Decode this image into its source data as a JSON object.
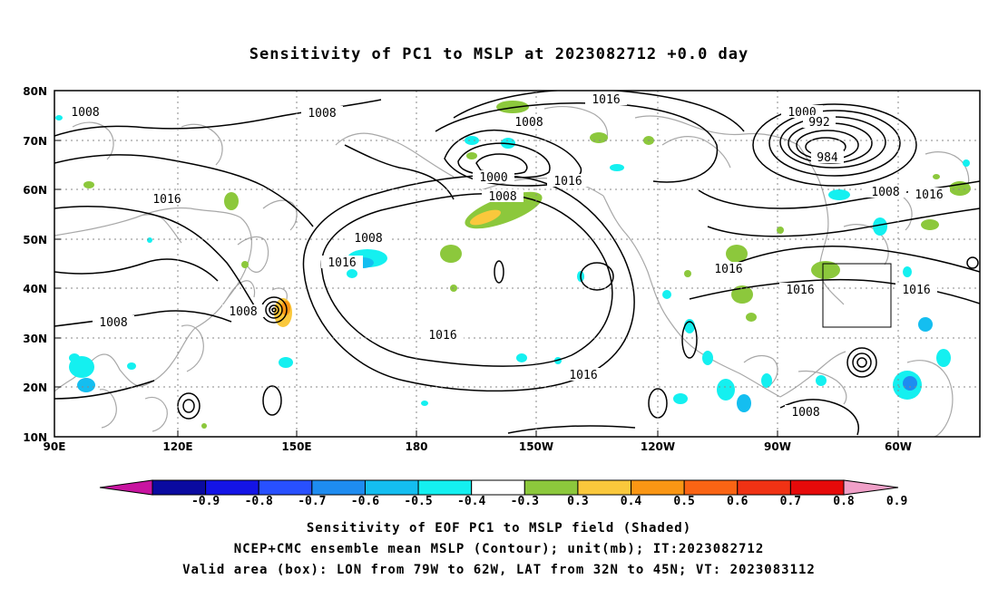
{
  "title": "Sensitivity of PC1 to MSLP at 2023082712 +0.0 day",
  "lat_labels": [
    "80N",
    "70N",
    "60N",
    "50N",
    "40N",
    "30N",
    "20N",
    "10N"
  ],
  "lon_labels": [
    "90E",
    "120E",
    "150E",
    "180",
    "150W",
    "120W",
    "90W",
    "60W"
  ],
  "contour_labels": [
    {
      "text": "1016",
      "id": "c1"
    },
    {
      "text": "1008",
      "id": "c2"
    },
    {
      "text": "1008",
      "id": "c3"
    },
    {
      "text": "1000",
      "id": "c4"
    },
    {
      "text": "992",
      "id": "c5"
    },
    {
      "text": "984",
      "id": "c6"
    },
    {
      "text": "1008",
      "id": "c7"
    },
    {
      "text": "1016",
      "id": "c8"
    },
    {
      "text": "1000",
      "id": "c9"
    },
    {
      "text": "1008",
      "id": "c10"
    },
    {
      "text": "1016",
      "id": "c11"
    },
    {
      "text": "1016",
      "id": "c12"
    },
    {
      "text": "1008",
      "id": "c13"
    },
    {
      "text": "1016",
      "id": "c14"
    },
    {
      "text": "1008",
      "id": "c15"
    },
    {
      "text": "1016",
      "id": "c16"
    },
    {
      "text": "1016",
      "id": "c17"
    },
    {
      "text": "1016",
      "id": "c18"
    },
    {
      "text": "1008",
      "id": "c19"
    },
    {
      "text": "1016",
      "id": "c20"
    },
    {
      "text": "1016",
      "id": "c21"
    },
    {
      "text": "1008",
      "id": "c22"
    },
    {
      "text": "1008",
      "id": "c23"
    }
  ],
  "colorbar": {
    "labels": [
      "-0.9",
      "-0.8",
      "-0.7",
      "-0.6",
      "-0.5",
      "-0.4",
      "-0.3",
      "0.3",
      "0.4",
      "0.5",
      "0.6",
      "0.7",
      "0.8",
      "0.9"
    ],
    "colors": [
      "#0a0aa0",
      "#1414e6",
      "#2850ff",
      "#1e8cf0",
      "#14bef0",
      "#14f0f0",
      "#ffffff",
      "#8cc83c",
      "#fac83c",
      "#fa9614",
      "#fa6414",
      "#f03214",
      "#e60a0a"
    ],
    "low_end_color": "#c814a0",
    "high_end_color": "#f0a0c8"
  },
  "captions": [
    "Sensitivity of EOF PC1 to MSLP field (Shaded)",
    "NCEP+CMC ensemble mean MSLP (Contour); unit(mb); IT:2023082712",
    "Valid area (box): LON from 79W to 62W, LAT from 32N to 45N; VT: 2023083112"
  ]
}
